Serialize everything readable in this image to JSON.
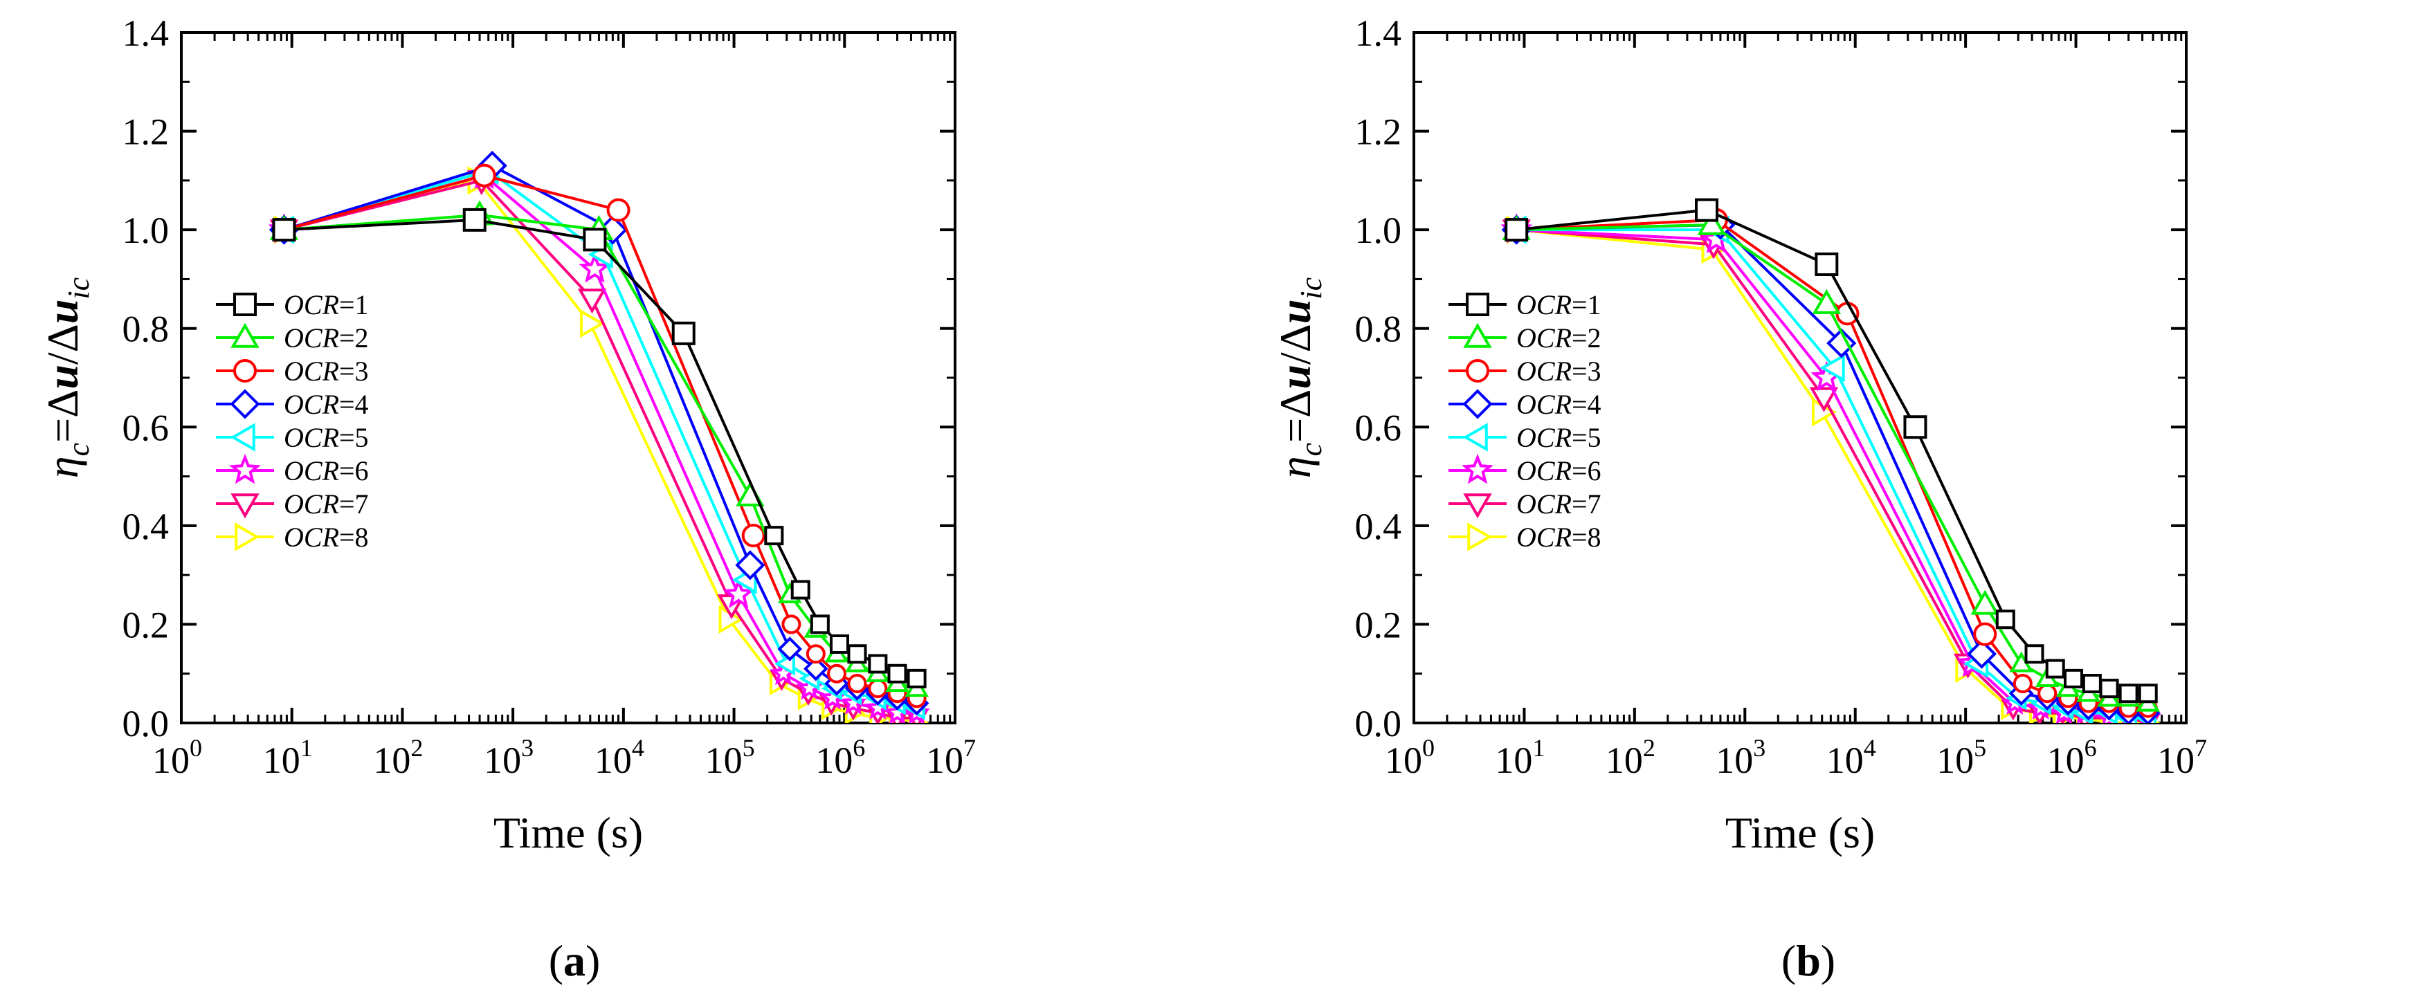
{
  "chart_data": [
    {
      "type": "line",
      "panel_label": "a",
      "xlabel": "Time (s)",
      "ylabel": "η_c=Δu/Δu_ic",
      "xscale": "log",
      "xlim": [
        1,
        10000000
      ],
      "ylim": [
        0,
        1.4
      ],
      "xticks": [
        {
          "base": "10",
          "exp": "0"
        },
        {
          "base": "10",
          "exp": "1"
        },
        {
          "base": "10",
          "exp": "2"
        },
        {
          "base": "10",
          "exp": "3"
        },
        {
          "base": "10",
          "exp": "4"
        },
        {
          "base": "10",
          "exp": "5"
        },
        {
          "base": "10",
          "exp": "6"
        },
        {
          "base": "10",
          "exp": "7"
        }
      ],
      "yticks": [
        "0.0",
        "0.2",
        "0.4",
        "0.6",
        "0.8",
        "1.0",
        "1.2",
        "1.4"
      ],
      "legend_position": "center-left",
      "series": [
        {
          "name": "OCR=1",
          "label_var": "OCR",
          "label_val": "=1",
          "color": "#000000",
          "marker": "square",
          "x": [
            8.5,
            450,
            5500,
            35000,
            230000,
            400000,
            600000,
            900000,
            1300000,
            2000000,
            3000000,
            4500000
          ],
          "y": [
            1.0,
            1.02,
            0.98,
            0.79,
            0.38,
            0.27,
            0.2,
            0.16,
            0.14,
            0.12,
            0.1,
            0.09
          ]
        },
        {
          "name": "OCR=2",
          "label_var": "OCR",
          "label_val": "=2",
          "color": "#00ee00",
          "marker": "triangle-up",
          "x": [
            8.5,
            500,
            6000,
            140000,
            320000,
            550000,
            850000,
            1300000,
            2000000,
            3000000,
            4500000
          ],
          "y": [
            1.0,
            1.03,
            1.0,
            0.46,
            0.26,
            0.19,
            0.14,
            0.12,
            0.1,
            0.08,
            0.07
          ]
        },
        {
          "name": "OCR=3",
          "label_var": "OCR",
          "label_val": "=3",
          "color": "#ff0000",
          "marker": "circle",
          "x": [
            8.5,
            550,
            9000,
            150000,
            330000,
            550000,
            850000,
            1300000,
            2000000,
            3000000,
            4500000
          ],
          "y": [
            1.0,
            1.11,
            1.04,
            0.38,
            0.2,
            0.14,
            0.1,
            0.08,
            0.07,
            0.06,
            0.05
          ]
        },
        {
          "name": "OCR=4",
          "label_var": "OCR",
          "label_val": "=4",
          "color": "#0000ff",
          "marker": "diamond",
          "x": [
            8.5,
            650,
            8000,
            140000,
            320000,
            550000,
            850000,
            1300000,
            2000000,
            3000000,
            4500000
          ],
          "y": [
            1.0,
            1.13,
            1.0,
            0.32,
            0.15,
            0.11,
            0.08,
            0.07,
            0.06,
            0.05,
            0.04
          ]
        },
        {
          "name": "OCR=5",
          "label_var": "OCR",
          "label_val": "=5",
          "color": "#00ffff",
          "marker": "triangle-left",
          "x": [
            8.5,
            600,
            6500,
            130000,
            300000,
            500000,
            800000,
            1200000,
            2000000,
            3000000,
            4500000
          ],
          "y": [
            1.0,
            1.12,
            0.95,
            0.29,
            0.12,
            0.09,
            0.07,
            0.06,
            0.05,
            0.04,
            0.03
          ]
        },
        {
          "name": "OCR=6",
          "label_var": "OCR",
          "label_val": "=6",
          "color": "#ff00ff",
          "marker": "star",
          "x": [
            8.5,
            550,
            5500,
            110000,
            280000,
            480000,
            780000,
            1200000,
            2000000,
            3000000,
            4500000
          ],
          "y": [
            1.0,
            1.11,
            0.92,
            0.26,
            0.1,
            0.07,
            0.05,
            0.04,
            0.03,
            0.02,
            0.02
          ]
        },
        {
          "name": "OCR=7",
          "label_var": "OCR",
          "label_val": "=7",
          "color": "#ff0080",
          "marker": "triangle-down",
          "x": [
            8.5,
            520,
            5200,
            95000,
            270000,
            470000,
            760000,
            1200000,
            2000000,
            3000000,
            4500000
          ],
          "y": [
            1.0,
            1.1,
            0.86,
            0.24,
            0.09,
            0.06,
            0.04,
            0.03,
            0.02,
            0.01,
            0.01
          ]
        },
        {
          "name": "OCR=8",
          "label_var": "OCR",
          "label_val": "=8",
          "color": "#ffff00",
          "marker": "triangle-right",
          "x": [
            8.5,
            480,
            5000,
            90000,
            250000,
            450000,
            740000,
            1200000,
            2000000,
            3000000,
            4500000
          ],
          "y": [
            1.0,
            1.1,
            0.81,
            0.21,
            0.08,
            0.05,
            0.03,
            0.02,
            0.01,
            0.01,
            0.0
          ]
        }
      ]
    },
    {
      "type": "line",
      "panel_label": "b",
      "xlabel": "Time (s)",
      "ylabel": "η_c=Δu/Δu_ic",
      "xscale": "log",
      "xlim": [
        1,
        10000000
      ],
      "ylim": [
        0,
        1.4
      ],
      "xticks": [
        {
          "base": "10",
          "exp": "0"
        },
        {
          "base": "10",
          "exp": "1"
        },
        {
          "base": "10",
          "exp": "2"
        },
        {
          "base": "10",
          "exp": "3"
        },
        {
          "base": "10",
          "exp": "4"
        },
        {
          "base": "10",
          "exp": "5"
        },
        {
          "base": "10",
          "exp": "6"
        },
        {
          "base": "10",
          "exp": "7"
        }
      ],
      "yticks": [
        "0.0",
        "0.2",
        "0.4",
        "0.6",
        "0.8",
        "1.0",
        "1.2",
        "1.4"
      ],
      "legend_position": "center-left",
      "series": [
        {
          "name": "OCR=1",
          "label_var": "OCR",
          "label_val": "=1",
          "color": "#000000",
          "marker": "square",
          "x": [
            8.5,
            450,
            5500,
            35000,
            230000,
            420000,
            650000,
            950000,
            1400000,
            2000000,
            3000000,
            4500000
          ],
          "y": [
            1.0,
            1.04,
            0.93,
            0.6,
            0.21,
            0.14,
            0.11,
            0.09,
            0.08,
            0.07,
            0.06,
            0.06
          ]
        },
        {
          "name": "OCR=2",
          "label_var": "OCR",
          "label_val": "=2",
          "color": "#00ee00",
          "marker": "triangle-up",
          "x": [
            8.5,
            500,
            5500,
            150000,
            320000,
            550000,
            850000,
            1300000,
            2000000,
            3000000,
            4500000
          ],
          "y": [
            1.0,
            1.01,
            0.85,
            0.24,
            0.12,
            0.09,
            0.07,
            0.06,
            0.05,
            0.05,
            0.04
          ]
        },
        {
          "name": "OCR=3",
          "label_var": "OCR",
          "label_val": "=3",
          "color": "#ff0000",
          "marker": "circle",
          "x": [
            8.5,
            550,
            8500,
            150000,
            330000,
            550000,
            850000,
            1300000,
            2000000,
            3000000,
            4500000
          ],
          "y": [
            1.0,
            1.02,
            0.83,
            0.18,
            0.08,
            0.06,
            0.05,
            0.04,
            0.04,
            0.03,
            0.03
          ]
        },
        {
          "name": "OCR=4",
          "label_var": "OCR",
          "label_val": "=4",
          "color": "#0000ff",
          "marker": "diamond",
          "x": [
            8.5,
            600,
            7500,
            140000,
            320000,
            550000,
            850000,
            1300000,
            2000000,
            3000000,
            4500000
          ],
          "y": [
            1.0,
            1.01,
            0.77,
            0.14,
            0.06,
            0.05,
            0.04,
            0.03,
            0.03,
            0.02,
            0.02
          ]
        },
        {
          "name": "OCR=5",
          "label_var": "OCR",
          "label_val": "=5",
          "color": "#00ffff",
          "marker": "triangle-left",
          "x": [
            8.5,
            580,
            6500,
            130000,
            300000,
            500000,
            800000,
            1200000,
            2000000,
            3000000,
            4500000
          ],
          "y": [
            1.0,
            1.0,
            0.72,
            0.12,
            0.05,
            0.04,
            0.03,
            0.02,
            0.02,
            0.01,
            0.01
          ]
        },
        {
          "name": "OCR=6",
          "label_var": "OCR",
          "label_val": "=6",
          "color": "#ff00ff",
          "marker": "star",
          "x": [
            8.5,
            550,
            5500,
            115000,
            280000,
            480000,
            780000,
            1200000,
            2000000,
            3000000,
            4500000
          ],
          "y": [
            1.0,
            0.98,
            0.7,
            0.12,
            0.04,
            0.03,
            0.02,
            0.02,
            0.01,
            0.01,
            0.01
          ]
        },
        {
          "name": "OCR=7",
          "label_var": "OCR",
          "label_val": "=7",
          "color": "#ff0080",
          "marker": "triangle-down",
          "x": [
            8.5,
            520,
            5200,
            105000,
            270000,
            470000,
            760000,
            1200000,
            2000000,
            3000000,
            4500000
          ],
          "y": [
            1.0,
            0.97,
            0.66,
            0.12,
            0.03,
            0.02,
            0.02,
            0.01,
            0.01,
            0.01,
            0.0
          ]
        },
        {
          "name": "OCR=8",
          "label_var": "OCR",
          "label_val": "=8",
          "color": "#ffff00",
          "marker": "triangle-right",
          "x": [
            8.5,
            500,
            5000,
            100000,
            250000,
            450000,
            740000,
            1200000,
            2000000,
            3000000,
            4500000
          ],
          "y": [
            1.0,
            0.96,
            0.63,
            0.11,
            0.03,
            0.02,
            0.01,
            0.01,
            0.0,
            0.0,
            0.0
          ]
        }
      ]
    }
  ]
}
